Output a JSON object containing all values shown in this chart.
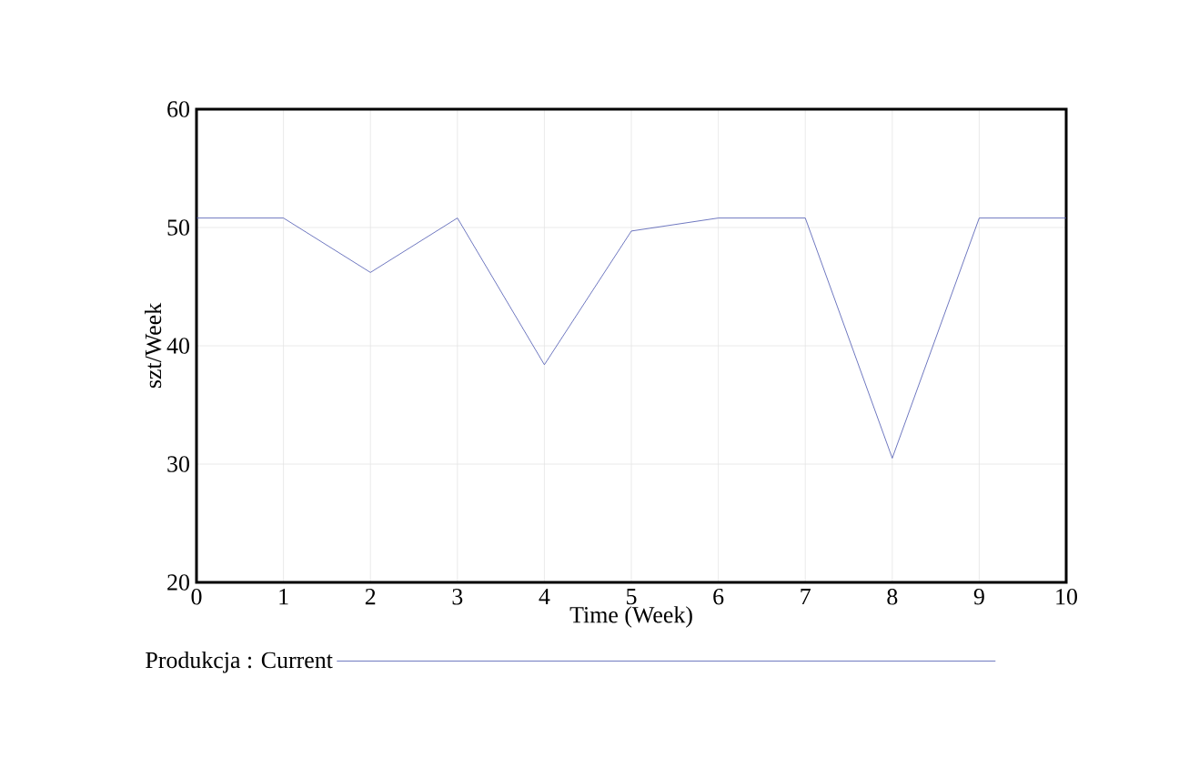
{
  "chart_data": {
    "type": "line",
    "xlabel": "Time (Week)",
    "ylabel": "szt/Week",
    "x": [
      0,
      1,
      2,
      3,
      4,
      5,
      6,
      7,
      8,
      9,
      10
    ],
    "series": [
      {
        "name": "Produkcja : Current",
        "color": "#4a56b0",
        "values": [
          50.8,
          50.8,
          46.2,
          50.8,
          38.4,
          49.7,
          50.8,
          50.8,
          30.5,
          50.8,
          50.8
        ]
      }
    ],
    "xlim": [
      0,
      10
    ],
    "ylim": [
      20,
      60
    ],
    "xticks": [
      0,
      1,
      2,
      3,
      4,
      5,
      6,
      7,
      8,
      9,
      10
    ],
    "yticks": [
      20,
      30,
      40,
      50,
      60
    ],
    "grid": true,
    "legend": "bottom",
    "marker": "none",
    "line_style": "solid"
  }
}
